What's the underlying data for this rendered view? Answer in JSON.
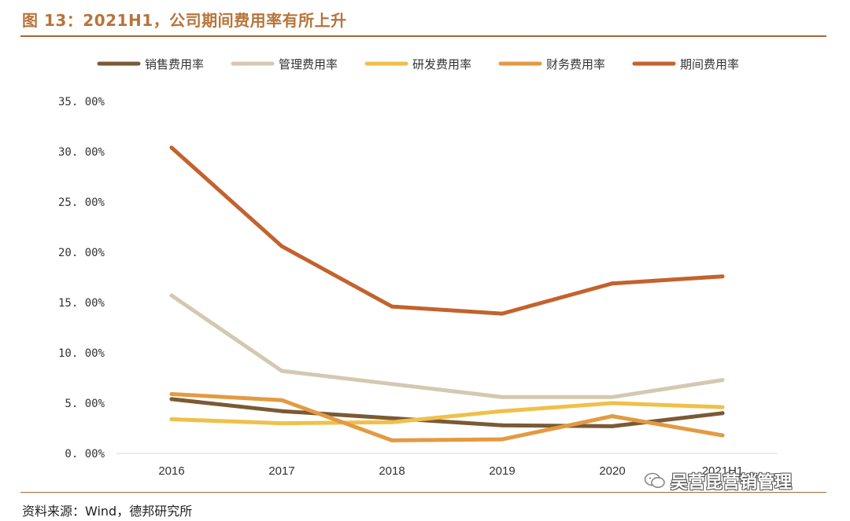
{
  "header": {
    "title": "图 13：2021H1，公司期间费用率有所上升"
  },
  "footer": {
    "source": "资料来源：Wind，德邦研究所"
  },
  "watermark": {
    "text": "吴营昆营销管理",
    "icon": "wechat-icon"
  },
  "chart_data": {
    "type": "line",
    "title": "",
    "xlabel": "",
    "ylabel": "",
    "categories": [
      "2016",
      "2017",
      "2018",
      "2019",
      "2020",
      "2021H1"
    ],
    "ylim": [
      0,
      35
    ],
    "yticks": [
      0,
      5,
      10,
      15,
      20,
      25,
      30,
      35
    ],
    "ytick_labels": [
      "0. 00%",
      "5. 00%",
      "10. 00%",
      "15. 00%",
      "20. 00%",
      "25. 00%",
      "30. 00%",
      "35. 00%"
    ],
    "legend_position": "top",
    "grid": false,
    "series": [
      {
        "name": "销售费用率",
        "color": "#7a5a35",
        "values": [
          5.4,
          4.2,
          3.5,
          2.8,
          2.7,
          4.0
        ]
      },
      {
        "name": "管理费用率",
        "color": "#d3c9b0",
        "values": [
          15.7,
          8.2,
          6.9,
          5.6,
          5.6,
          7.3
        ]
      },
      {
        "name": "研发费用率",
        "color": "#efc04a",
        "values": [
          3.4,
          3.0,
          3.1,
          4.2,
          5.0,
          4.6
        ]
      },
      {
        "name": "财务费用率",
        "color": "#e39a42",
        "values": [
          5.9,
          5.3,
          1.3,
          1.4,
          3.7,
          1.8
        ]
      },
      {
        "name": "期间费用率",
        "color": "#c4622d",
        "values": [
          30.4,
          20.6,
          14.6,
          13.9,
          16.9,
          17.6
        ]
      }
    ]
  }
}
